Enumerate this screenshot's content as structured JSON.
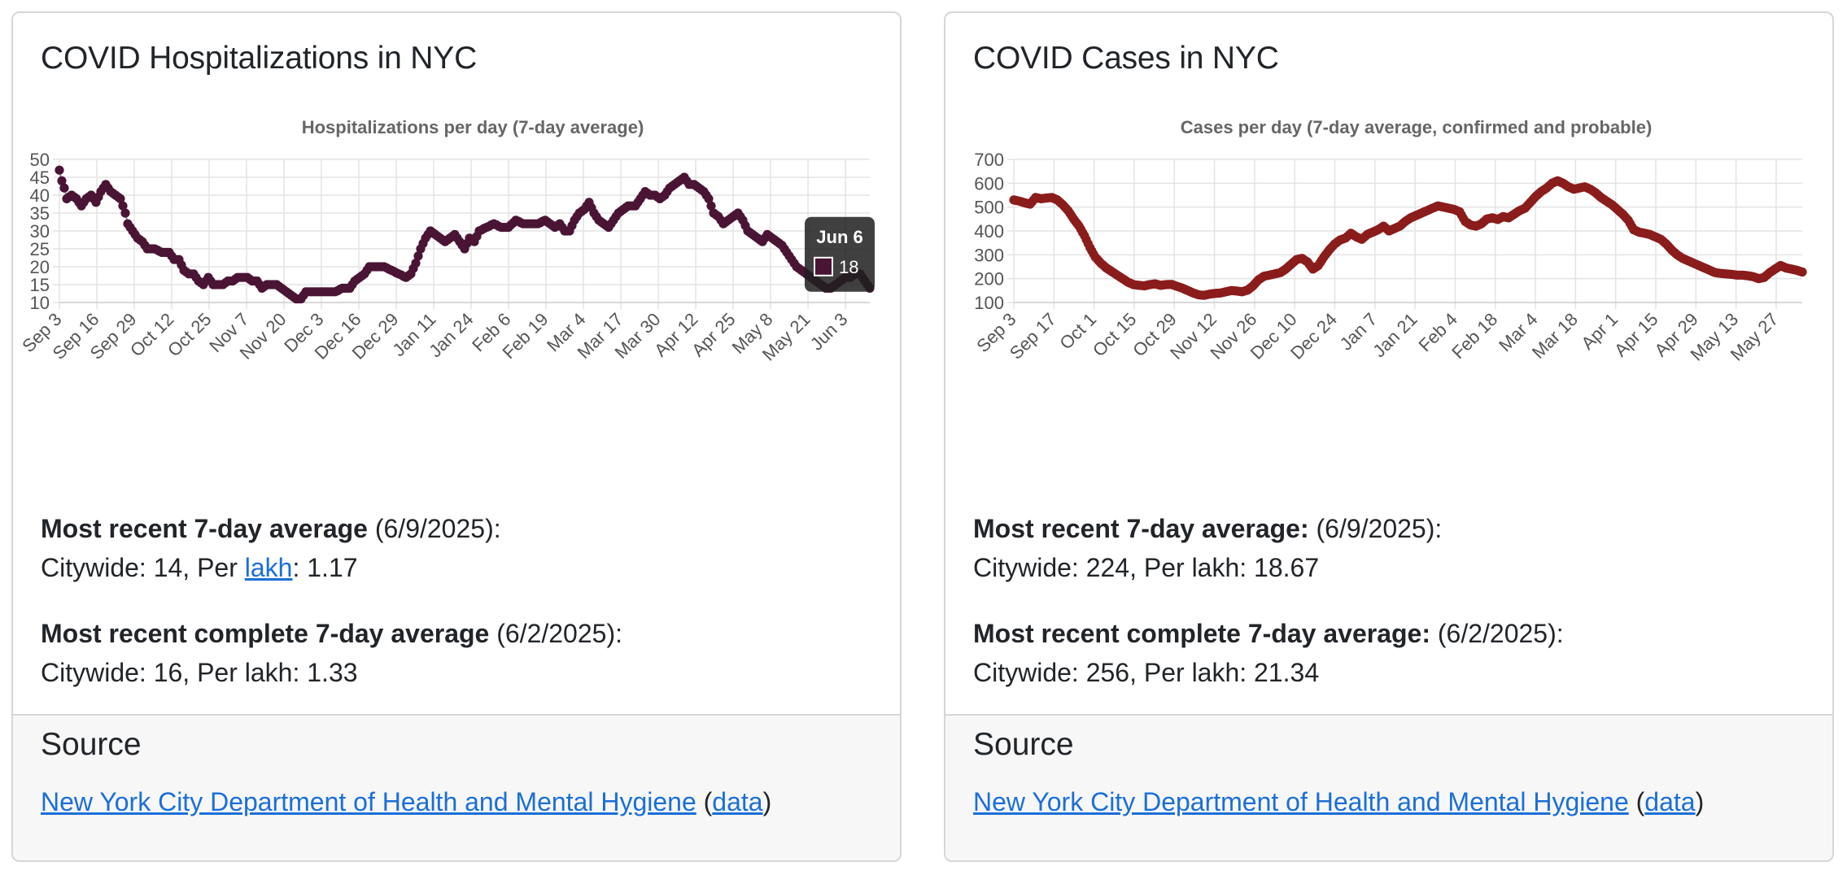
{
  "cards": [
    {
      "title": "COVID Hospitalizations in NYC",
      "stats": {
        "recent_label": "Most recent 7-day average",
        "recent_date": " (6/9/2025):",
        "recent_citywide_prefix": "Citywide: 14, Per ",
        "recent_lakh_link": "lakh",
        "recent_lakh_value": ": 1.17",
        "complete_label": "Most recent complete 7-day average",
        "complete_date": " (6/2/2025):",
        "complete_line": "Citywide: 16, Per lakh: 1.33"
      },
      "source": {
        "heading": "Source",
        "link": "New York City Department of Health and Mental Hygiene",
        "open": " (",
        "data_link": "data",
        "close": ")"
      }
    },
    {
      "title": "COVID Cases in NYC",
      "stats": {
        "recent_label": "Most recent 7-day average:",
        "recent_date": " (6/9/2025):",
        "recent_line": "Citywide: 224, Per lakh: 18.67",
        "complete_label": "Most recent complete 7-day average:",
        "complete_date": " (6/2/2025):",
        "complete_line": "Citywide: 256, Per lakh: 21.34"
      },
      "source": {
        "heading": "Source",
        "link": "New York City Department of Health and Mental Hygiene",
        "open": " (",
        "data_link": "data",
        "close": ")"
      }
    }
  ],
  "chart_data": [
    {
      "type": "scatter",
      "title": "Hospitalizations per day (7-day average)",
      "xlabel": "",
      "ylabel": "",
      "ylim": [
        10,
        50
      ],
      "yticks": [
        10,
        15,
        20,
        25,
        30,
        35,
        40,
        45,
        50
      ],
      "xtick_labels": [
        "Sep 3",
        "Sep 16",
        "Sep 29",
        "Oct 12",
        "Oct 25",
        "Nov 7",
        "Nov 20",
        "Dec 3",
        "Dec 16",
        "Dec 29",
        "Jan 11",
        "Jan 24",
        "Feb 6",
        "Feb 19",
        "Mar 4",
        "Mar 17",
        "Mar 30",
        "Apr 12",
        "Apr 25",
        "May 8",
        "May 21",
        "Jun 3"
      ],
      "xtick_step_days": 13,
      "x_range_days": [
        0,
        281
      ],
      "point_color": "#4a1535",
      "anchors": [
        [
          0,
          47
        ],
        [
          1,
          44
        ],
        [
          2,
          42
        ],
        [
          3,
          39
        ],
        [
          5,
          40
        ],
        [
          7,
          39
        ],
        [
          9,
          37
        ],
        [
          11,
          39
        ],
        [
          13,
          40
        ],
        [
          15,
          38
        ],
        [
          17,
          41
        ],
        [
          19,
          43
        ],
        [
          21,
          41
        ],
        [
          23,
          40
        ],
        [
          25,
          39
        ],
        [
          26,
          37
        ],
        [
          27,
          35
        ],
        [
          28,
          32
        ],
        [
          30,
          30
        ],
        [
          32,
          28
        ],
        [
          34,
          27
        ],
        [
          36,
          25
        ],
        [
          39,
          25
        ],
        [
          42,
          24
        ],
        [
          45,
          24
        ],
        [
          47,
          22
        ],
        [
          49,
          22
        ],
        [
          51,
          19
        ],
        [
          53,
          18
        ],
        [
          55,
          18
        ],
        [
          57,
          16
        ],
        [
          59,
          15
        ],
        [
          61,
          17
        ],
        [
          63,
          15
        ],
        [
          65,
          15
        ],
        [
          67,
          15
        ],
        [
          69,
          16
        ],
        [
          71,
          16
        ],
        [
          73,
          17
        ],
        [
          75,
          17
        ],
        [
          77,
          17
        ],
        [
          79,
          16
        ],
        [
          81,
          16
        ],
        [
          83,
          14
        ],
        [
          85,
          15
        ],
        [
          87,
          15
        ],
        [
          89,
          15
        ],
        [
          91,
          14
        ],
        [
          93,
          13
        ],
        [
          95,
          12
        ],
        [
          97,
          11
        ],
        [
          99,
          11
        ],
        [
          101,
          13
        ],
        [
          104,
          13
        ],
        [
          107,
          13
        ],
        [
          110,
          13
        ],
        [
          113,
          13
        ],
        [
          116,
          14
        ],
        [
          119,
          14
        ],
        [
          121,
          16
        ],
        [
          123,
          17
        ],
        [
          125,
          18
        ],
        [
          127,
          20
        ],
        [
          130,
          20
        ],
        [
          133,
          20
        ],
        [
          136,
          19
        ],
        [
          139,
          18
        ],
        [
          142,
          17
        ],
        [
          144,
          18
        ],
        [
          146,
          21
        ],
        [
          148,
          25
        ],
        [
          150,
          28
        ],
        [
          152,
          30
        ],
        [
          154,
          29
        ],
        [
          156,
          28
        ],
        [
          158,
          27
        ],
        [
          160,
          28
        ],
        [
          162,
          29
        ],
        [
          164,
          27
        ],
        [
          166,
          25
        ],
        [
          168,
          28
        ],
        [
          170,
          27
        ],
        [
          172,
          30
        ],
        [
          175,
          31
        ],
        [
          178,
          32
        ],
        [
          181,
          31
        ],
        [
          184,
          31
        ],
        [
          187,
          33
        ],
        [
          190,
          32
        ],
        [
          193,
          32
        ],
        [
          196,
          32
        ],
        [
          199,
          33
        ],
        [
          201,
          32
        ],
        [
          203,
          31
        ],
        [
          205,
          32
        ],
        [
          207,
          30
        ],
        [
          209,
          30
        ],
        [
          211,
          33
        ],
        [
          213,
          35
        ],
        [
          215,
          36
        ],
        [
          217,
          38
        ],
        [
          219,
          35
        ],
        [
          221,
          33
        ],
        [
          223,
          32
        ],
        [
          225,
          31
        ],
        [
          227,
          33
        ],
        [
          229,
          35
        ],
        [
          231,
          36
        ],
        [
          233,
          37
        ],
        [
          236,
          37
        ],
        [
          238,
          39
        ],
        [
          240,
          41
        ],
        [
          242,
          40
        ],
        [
          244,
          40
        ],
        [
          246,
          39
        ],
        [
          248,
          40
        ],
        [
          250,
          42
        ],
        [
          252,
          43
        ],
        [
          254,
          44
        ],
        [
          256,
          45
        ],
        [
          258,
          43
        ],
        [
          260,
          43
        ],
        [
          262,
          42
        ],
        [
          264,
          41
        ],
        [
          266,
          39
        ],
        [
          268,
          35
        ],
        [
          270,
          34
        ],
        [
          272,
          32
        ],
        [
          274,
          33
        ],
        [
          276,
          34
        ],
        [
          278,
          35
        ],
        [
          280,
          33
        ],
        [
          282,
          30
        ],
        [
          284,
          29
        ],
        [
          286,
          28
        ],
        [
          288,
          27
        ],
        [
          290,
          29
        ],
        [
          292,
          28
        ],
        [
          294,
          27
        ],
        [
          296,
          26
        ],
        [
          298,
          24
        ],
        [
          300,
          22
        ],
        [
          302,
          20
        ],
        [
          304,
          19
        ],
        [
          306,
          18
        ],
        [
          308,
          17
        ],
        [
          310,
          16
        ],
        [
          312,
          15
        ],
        [
          314,
          14
        ],
        [
          316,
          14
        ],
        [
          318,
          15
        ],
        [
          320,
          16
        ],
        [
          322,
          17
        ],
        [
          324,
          17
        ],
        [
          326,
          18
        ],
        [
          328,
          18
        ],
        [
          330,
          16
        ],
        [
          332,
          14
        ]
      ],
      "tooltip": {
        "label": "Jun 6",
        "value": "18",
        "swatch": "#4a1535"
      }
    },
    {
      "type": "scatter",
      "title": "Cases per day (7-day average, confirmed and probable)",
      "xlabel": "",
      "ylabel": "",
      "ylim": [
        100,
        700
      ],
      "yticks": [
        100,
        200,
        300,
        400,
        500,
        600,
        700
      ],
      "xtick_labels": [
        "Sep 3",
        "Sep 17",
        "Oct 1",
        "Oct 15",
        "Oct 29",
        "Nov 12",
        "Nov 26",
        "Dec 10",
        "Dec 24",
        "Jan 7",
        "Jan 21",
        "Feb 4",
        "Feb 18",
        "Mar 4",
        "Mar 18",
        "Apr 1",
        "Apr 15",
        "Apr 29",
        "May 13",
        "May 27"
      ],
      "xtick_step_days": 14,
      "point_color": "#8b1c1c",
      "anchors": [
        [
          0,
          530
        ],
        [
          3,
          525
        ],
        [
          6,
          518
        ],
        [
          9,
          512
        ],
        [
          12,
          540
        ],
        [
          15,
          535
        ],
        [
          18,
          538
        ],
        [
          21,
          540
        ],
        [
          24,
          530
        ],
        [
          27,
          510
        ],
        [
          30,
          485
        ],
        [
          33,
          450
        ],
        [
          36,
          420
        ],
        [
          39,
          380
        ],
        [
          42,
          330
        ],
        [
          45,
          290
        ],
        [
          48,
          265
        ],
        [
          51,
          245
        ],
        [
          54,
          230
        ],
        [
          57,
          215
        ],
        [
          60,
          200
        ],
        [
          63,
          185
        ],
        [
          66,
          175
        ],
        [
          69,
          172
        ],
        [
          72,
          170
        ],
        [
          75,
          175
        ],
        [
          78,
          178
        ],
        [
          81,
          172
        ],
        [
          84,
          175
        ],
        [
          87,
          176
        ],
        [
          90,
          168
        ],
        [
          93,
          160
        ],
        [
          96,
          150
        ],
        [
          99,
          140
        ],
        [
          102,
          132
        ],
        [
          105,
          130
        ],
        [
          108,
          135
        ],
        [
          111,
          138
        ],
        [
          114,
          140
        ],
        [
          117,
          145
        ],
        [
          120,
          150
        ],
        [
          123,
          148
        ],
        [
          126,
          145
        ],
        [
          129,
          152
        ],
        [
          132,
          170
        ],
        [
          135,
          195
        ],
        [
          138,
          210
        ],
        [
          141,
          215
        ],
        [
          144,
          220
        ],
        [
          147,
          225
        ],
        [
          150,
          240
        ],
        [
          153,
          260
        ],
        [
          156,
          280
        ],
        [
          159,
          285
        ],
        [
          162,
          270
        ],
        [
          165,
          240
        ],
        [
          168,
          255
        ],
        [
          171,
          290
        ],
        [
          174,
          320
        ],
        [
          177,
          345
        ],
        [
          180,
          362
        ],
        [
          183,
          370
        ],
        [
          186,
          390
        ],
        [
          189,
          375
        ],
        [
          192,
          365
        ],
        [
          195,
          385
        ],
        [
          198,
          395
        ],
        [
          201,
          405
        ],
        [
          204,
          420
        ],
        [
          207,
          400
        ],
        [
          210,
          410
        ],
        [
          213,
          420
        ],
        [
          216,
          440
        ],
        [
          219,
          455
        ],
        [
          222,
          465
        ],
        [
          225,
          475
        ],
        [
          228,
          485
        ],
        [
          231,
          495
        ],
        [
          234,
          505
        ],
        [
          237,
          500
        ],
        [
          240,
          495
        ],
        [
          243,
          490
        ],
        [
          246,
          480
        ],
        [
          249,
          440
        ],
        [
          252,
          425
        ],
        [
          255,
          420
        ],
        [
          258,
          430
        ],
        [
          261,
          450
        ],
        [
          264,
          455
        ],
        [
          267,
          448
        ],
        [
          270,
          460
        ],
        [
          273,
          455
        ],
        [
          276,
          470
        ],
        [
          279,
          485
        ],
        [
          282,
          495
        ],
        [
          285,
          520
        ],
        [
          288,
          545
        ],
        [
          291,
          565
        ],
        [
          294,
          580
        ],
        [
          297,
          600
        ],
        [
          300,
          610
        ],
        [
          303,
          600
        ],
        [
          306,
          585
        ],
        [
          309,
          575
        ],
        [
          312,
          580
        ],
        [
          315,
          585
        ],
        [
          318,
          575
        ],
        [
          321,
          560
        ],
        [
          324,
          540
        ],
        [
          327,
          525
        ],
        [
          330,
          510
        ],
        [
          333,
          490
        ],
        [
          336,
          470
        ],
        [
          339,
          445
        ],
        [
          342,
          405
        ],
        [
          345,
          395
        ],
        [
          348,
          390
        ],
        [
          351,
          385
        ],
        [
          354,
          375
        ],
        [
          357,
          365
        ],
        [
          360,
          345
        ],
        [
          363,
          320
        ],
        [
          366,
          300
        ],
        [
          369,
          285
        ],
        [
          372,
          275
        ],
        [
          375,
          265
        ],
        [
          378,
          255
        ],
        [
          381,
          245
        ],
        [
          384,
          235
        ],
        [
          387,
          225
        ],
        [
          390,
          222
        ],
        [
          393,
          220
        ],
        [
          396,
          218
        ],
        [
          399,
          215
        ],
        [
          402,
          215
        ],
        [
          405,
          212
        ],
        [
          408,
          208
        ],
        [
          411,
          200
        ],
        [
          414,
          205
        ],
        [
          417,
          225
        ],
        [
          420,
          240
        ],
        [
          423,
          255
        ],
        [
          426,
          245
        ],
        [
          429,
          240
        ],
        [
          432,
          235
        ],
        [
          435,
          228
        ]
      ]
    }
  ]
}
